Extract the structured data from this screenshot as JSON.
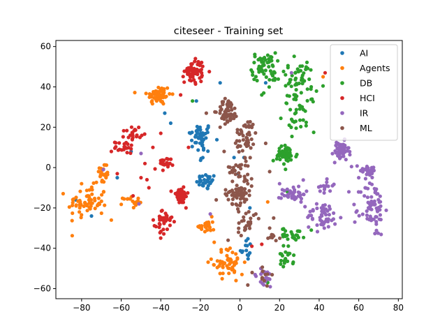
{
  "chart_data": {
    "type": "scatter",
    "title": "citeseer - Training set",
    "xlabel": "",
    "ylabel": "",
    "xlim": [
      -93,
      82
    ],
    "ylim": [
      -65,
      63
    ],
    "xticks": [
      -80,
      -60,
      -40,
      -20,
      0,
      20,
      40,
      60,
      80
    ],
    "yticks": [
      -60,
      -40,
      -20,
      0,
      20,
      40,
      60
    ],
    "grid": false,
    "legend_position": "top-right",
    "series": [
      {
        "name": "AI",
        "color": "#1f77b4",
        "clusters": [
          {
            "x": -20,
            "y": 16,
            "sx": 3,
            "sy": 3,
            "n": 40
          },
          {
            "x": -17,
            "y": -7,
            "sx": 2.5,
            "sy": 2,
            "n": 30
          },
          {
            "x": 3,
            "y": -40,
            "sx": 1.5,
            "sy": 3,
            "n": 14
          },
          {
            "x": -19,
            "y": 7,
            "sx": 2,
            "sy": 3,
            "n": 8
          }
        ],
        "points": [
          [
            -83,
            -16
          ],
          [
            -62,
            -5
          ],
          [
            -38,
            27
          ],
          [
            -10,
            42
          ],
          [
            -3,
            5
          ],
          [
            13,
            42
          ],
          [
            -22,
            33
          ],
          [
            -55,
            8
          ],
          [
            -35,
            22
          ],
          [
            -75,
            -24
          ],
          [
            2,
            5
          ],
          [
            -1,
            -3
          ],
          [
            -25,
            17
          ],
          [
            5,
            -20
          ]
        ]
      },
      {
        "name": "Agents",
        "color": "#ff7f0e",
        "clusters": [
          {
            "x": -41,
            "y": 36,
            "sx": 3,
            "sy": 2.5,
            "n": 60
          },
          {
            "x": -69,
            "y": -3,
            "sx": 1.5,
            "sy": 3,
            "n": 20
          },
          {
            "x": -77,
            "y": -17,
            "sx": 5,
            "sy": 4,
            "n": 65
          },
          {
            "x": -55,
            "y": -17,
            "sx": 2,
            "sy": 1.5,
            "n": 18
          },
          {
            "x": -17,
            "y": -29,
            "sx": 2,
            "sy": 2,
            "n": 25
          },
          {
            "x": -6,
            "y": -47,
            "sx": 4,
            "sy": 3.5,
            "n": 50
          }
        ],
        "points": [
          [
            -70,
            -2
          ],
          [
            -2,
            -56
          ],
          [
            14,
            -17
          ],
          [
            -13,
            -37
          ],
          [
            42,
            45
          ],
          [
            -80,
            -8
          ],
          [
            -65,
            -26
          ],
          [
            1,
            -53
          ]
        ]
      },
      {
        "name": "DB",
        "color": "#2ca02c",
        "clusters": [
          {
            "x": 12,
            "y": 50,
            "sx": 3,
            "sy": 3.5,
            "n": 55
          },
          {
            "x": 28,
            "y": 45,
            "sx": 5,
            "sy": 4,
            "n": 45
          },
          {
            "x": 30,
            "y": 28,
            "sx": 4,
            "sy": 5,
            "n": 40
          },
          {
            "x": 23,
            "y": 6,
            "sx": 3,
            "sy": 2.5,
            "n": 50
          },
          {
            "x": 27,
            "y": -33,
            "sx": 3,
            "sy": 1.5,
            "n": 25
          },
          {
            "x": 23,
            "y": -45,
            "sx": 2,
            "sy": 3,
            "n": 20
          }
        ],
        "points": [
          [
            11,
            36
          ],
          [
            12,
            37
          ],
          [
            -24,
            33
          ],
          [
            24,
            -12
          ],
          [
            14,
            -57
          ],
          [
            16,
            53
          ],
          [
            36,
            40
          ],
          [
            28,
            36
          ],
          [
            33,
            28
          ]
        ]
      },
      {
        "name": "HCI",
        "color": "#d62728",
        "clusters": [
          {
            "x": -23,
            "y": 48,
            "sx": 2.5,
            "sy": 3,
            "n": 60
          },
          {
            "x": -54,
            "y": 17,
            "sx": 2,
            "sy": 2,
            "n": 22
          },
          {
            "x": -58,
            "y": 10,
            "sx": 2.5,
            "sy": 1.5,
            "n": 20
          },
          {
            "x": -39,
            "y": 1,
            "sx": 2,
            "sy": 2,
            "n": 22
          },
          {
            "x": -30,
            "y": -14,
            "sx": 2,
            "sy": 2,
            "n": 45
          },
          {
            "x": -38,
            "y": -25,
            "sx": 2.5,
            "sy": 2,
            "n": 30
          },
          {
            "x": -39,
            "y": -30,
            "sx": 1.5,
            "sy": 2,
            "n": 12
          }
        ],
        "points": [
          [
            -62,
            -3
          ],
          [
            -47,
            -6
          ],
          [
            -44,
            10
          ],
          [
            -48,
            2
          ],
          [
            -30,
            36
          ],
          [
            -26,
            10
          ],
          [
            11,
            -38
          ],
          [
            6,
            -39
          ],
          [
            43,
            47
          ],
          [
            -54,
            -14
          ],
          [
            -40,
            17
          ],
          [
            -50,
            -5
          ],
          [
            -46,
            -10
          ],
          [
            -65,
            8
          ]
        ]
      },
      {
        "name": "IR",
        "color": "#9467bd",
        "clusters": [
          {
            "x": 51,
            "y": 8,
            "sx": 2,
            "sy": 2.5,
            "n": 50
          },
          {
            "x": 64,
            "y": -1,
            "sx": 3,
            "sy": 1.5,
            "n": 30
          },
          {
            "x": 27,
            "y": -13,
            "sx": 3,
            "sy": 2,
            "n": 40
          },
          {
            "x": 43,
            "y": -9,
            "sx": 2,
            "sy": 2.5,
            "n": 15
          },
          {
            "x": 42,
            "y": -24,
            "sx": 4,
            "sy": 3.5,
            "n": 50
          },
          {
            "x": 67,
            "y": -20,
            "sx": 3,
            "sy": 7,
            "n": 70
          },
          {
            "x": 12,
            "y": -55,
            "sx": 3,
            "sy": 2.5,
            "n": 20
          }
        ],
        "points": [
          [
            26,
            47
          ],
          [
            -69,
            -1
          ],
          [
            -50,
            7
          ],
          [
            -51,
            -18
          ],
          [
            -15,
            -23
          ],
          [
            58,
            -27
          ],
          [
            55,
            -12
          ],
          [
            60,
            -5
          ],
          [
            20,
            -8
          ],
          [
            48,
            -28
          ]
        ]
      },
      {
        "name": "ML",
        "color": "#8c564b",
        "clusters": [
          {
            "x": -6,
            "y": 28,
            "sx": 2.5,
            "sy": 3,
            "n": 55
          },
          {
            "x": 3,
            "y": 16,
            "sx": 3,
            "sy": 4,
            "n": 40
          },
          {
            "x": 1,
            "y": 0,
            "sx": 3,
            "sy": 5,
            "n": 35
          },
          {
            "x": -1,
            "y": -13,
            "sx": 3.5,
            "sy": 2.5,
            "n": 55
          },
          {
            "x": 3,
            "y": -27,
            "sx": 2,
            "sy": 4,
            "n": 25
          },
          {
            "x": 12,
            "y": -54,
            "sx": 2.5,
            "sy": 2,
            "n": 12
          },
          {
            "x": 18,
            "y": -35,
            "sx": 2,
            "sy": 1.5,
            "n": 8
          }
        ],
        "points": [
          [
            -10,
            20
          ],
          [
            13,
            12
          ],
          [
            -17,
            27
          ],
          [
            15,
            -2
          ],
          [
            -6,
            -36
          ],
          [
            -12,
            -16
          ],
          [
            8,
            -23
          ],
          [
            17,
            -25
          ],
          [
            -8,
            8
          ],
          [
            15,
            -30
          ]
        ]
      }
    ]
  }
}
